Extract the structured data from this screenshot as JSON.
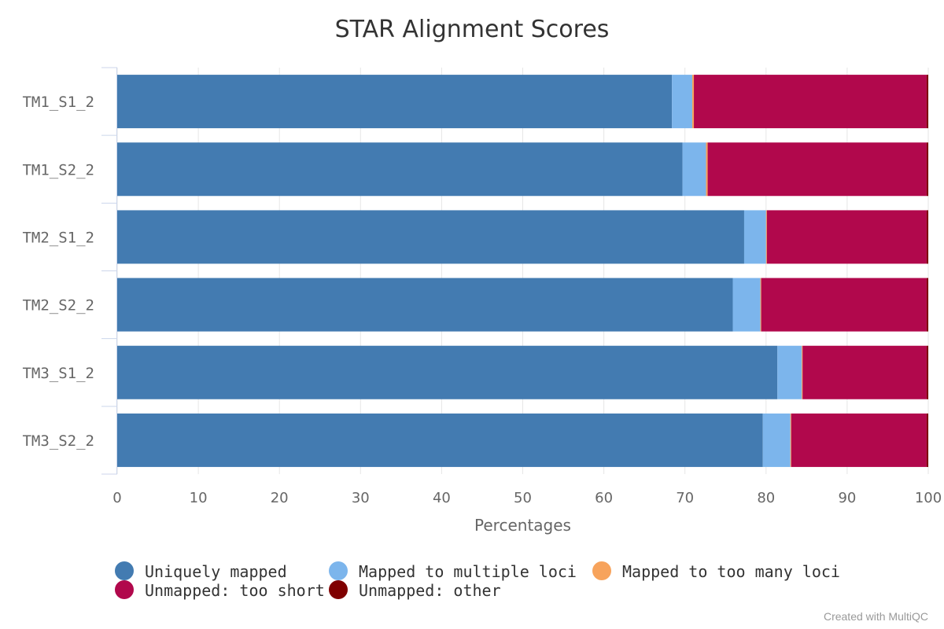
{
  "chart_data": {
    "type": "bar",
    "orientation": "horizontal",
    "stacked": true,
    "title": "STAR Alignment Scores",
    "xlabel": "Percentages",
    "ylabel": "",
    "xlim": [
      0,
      100
    ],
    "xticks": [
      "0",
      "10",
      "20",
      "30",
      "40",
      "50",
      "60",
      "70",
      "80",
      "90",
      "100"
    ],
    "grid": true,
    "legend_position": "bottom-left",
    "categories": [
      "TM1_S1_2",
      "TM1_S2_2",
      "TM2_S1_2",
      "TM2_S2_2",
      "TM3_S1_2",
      "TM3_S2_2"
    ],
    "series": [
      {
        "name": "Uniquely mapped",
        "color": "#437bb1",
        "values": [
          68.4,
          69.7,
          77.3,
          75.9,
          81.4,
          79.6
        ]
      },
      {
        "name": "Mapped to multiple loci",
        "color": "#7cb5ec",
        "values": [
          2.5,
          2.9,
          2.7,
          3.4,
          3.0,
          3.4
        ]
      },
      {
        "name": "Mapped to too many loci",
        "color": "#f7a35c",
        "values": [
          0.2,
          0.2,
          0.1,
          0.1,
          0.1,
          0.1
        ]
      },
      {
        "name": "Unmapped: too short",
        "color": "#b1084c",
        "values": [
          28.7,
          27.0,
          19.7,
          20.4,
          15.3,
          16.7
        ]
      },
      {
        "name": "Unmapped: other",
        "color": "#7f0000",
        "values": [
          0.2,
          0.2,
          0.2,
          0.2,
          0.2,
          0.2
        ]
      }
    ]
  },
  "footer": {
    "credit": "Created with MultiQC"
  }
}
